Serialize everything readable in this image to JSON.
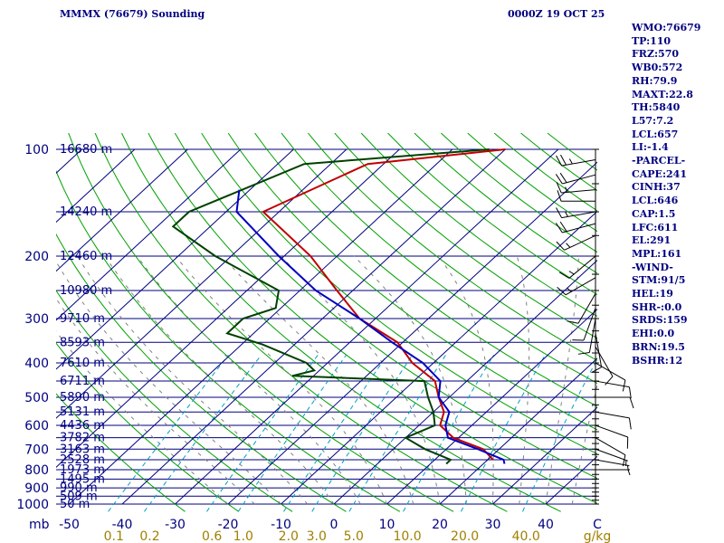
{
  "header": {
    "left": "MMMX (76679) Sounding",
    "right": "0000Z 19 OCT 25"
  },
  "stats": [
    "WMO:76679",
    "TP:110",
    "FRZ:570",
    "WB0:572",
    "RH:79.9",
    "MAXT:22.8",
    "TH:5840",
    "L57:7.2",
    "LCL:657",
    "LI:-1.4",
    "-PARCEL-",
    "CAPE:241",
    "CINH:37",
    "LCL:646",
    "CAP:1.5",
    "LFC:611",
    "EL:291",
    "MPL:161",
    "-WIND-",
    "STM:91/5",
    "HEL:19",
    "SHR-:0.0",
    "SRDS:159",
    "EHI:0.0",
    "BRN:19.5",
    "BSHR:12"
  ],
  "colors": {
    "isobar": "#000080",
    "isotherm": "#000080",
    "dry_adiabat": "#00a000",
    "moist_adiabat": "#808080",
    "mixing_ratio": "#00a0c0",
    "temperature": "#c00000",
    "dewpoint": "#004000",
    "parcel": "#0000c0",
    "text": "#000080",
    "mixing_label": "#a08000"
  },
  "chart_data": {
    "type": "line",
    "title": "MMMX (76679) Sounding",
    "subtitle": "0000Z 19 OCT 25",
    "xlabel": "C",
    "ylabel": "mb",
    "xlim": [
      -50,
      50
    ],
    "ylim": [
      1000,
      100
    ],
    "pressure_labels": [
      "100",
      "200",
      "300",
      "400",
      "500",
      "600",
      "700",
      "800",
      "900",
      "1000"
    ],
    "temperature_ticks": [
      "-50",
      "-40",
      "-30",
      "-20",
      "-10",
      "0",
      "10",
      "20",
      "30",
      "40"
    ],
    "mixing_ratio_labels": [
      "0.1",
      "0.2",
      "0.6",
      "1.0",
      "2.0",
      "3.0",
      "5.0",
      "10.0",
      "20.0",
      "40.0"
    ],
    "mixing_ratio_unit": "g/kg",
    "height_labels": [
      {
        "p": 100,
        "label": "16680 m"
      },
      {
        "p": 150,
        "label": "14240 m"
      },
      {
        "p": 200,
        "label": "12460 m"
      },
      {
        "p": 250,
        "label": "10980 m"
      },
      {
        "p": 300,
        "label": "9710 m"
      },
      {
        "p": 350,
        "label": "8593 m"
      },
      {
        "p": 400,
        "label": "7610 m"
      },
      {
        "p": 450,
        "label": "6711 m"
      },
      {
        "p": 500,
        "label": "5890 m"
      },
      {
        "p": 550,
        "label": "5131 m"
      },
      {
        "p": 600,
        "label": "4436 m"
      },
      {
        "p": 650,
        "label": "3782 m"
      },
      {
        "p": 700,
        "label": "3163 m"
      },
      {
        "p": 750,
        "label": "2528 m"
      },
      {
        "p": 800,
        "label": "1973 m"
      },
      {
        "p": 850,
        "label": "1495 m"
      },
      {
        "p": 900,
        "label": "990 m"
      },
      {
        "p": 950,
        "label": "509 m"
      },
      {
        "p": 1000,
        "label": "50 m"
      }
    ],
    "series": [
      {
        "name": "Temperature",
        "points": [
          [
            100,
            -40
          ],
          [
            110,
            -63
          ],
          [
            150,
            -73
          ],
          [
            200,
            -55
          ],
          [
            250,
            -43
          ],
          [
            300,
            -33
          ],
          [
            350,
            -21
          ],
          [
            400,
            -14
          ],
          [
            450,
            -6
          ],
          [
            500,
            -2
          ],
          [
            550,
            2
          ],
          [
            600,
            4
          ],
          [
            650,
            9
          ],
          [
            700,
            17
          ],
          [
            750,
            21
          ]
        ]
      },
      {
        "name": "Dewpoint",
        "points": [
          [
            100,
            -43
          ],
          [
            110,
            -75
          ],
          [
            150,
            -87
          ],
          [
            165,
            -87
          ],
          [
            200,
            -73
          ],
          [
            250,
            -54
          ],
          [
            280,
            -51
          ],
          [
            300,
            -55
          ],
          [
            330,
            -55
          ],
          [
            355,
            -46
          ],
          [
            400,
            -34
          ],
          [
            420,
            -31
          ],
          [
            435,
            -34
          ],
          [
            450,
            -8
          ],
          [
            500,
            -4
          ],
          [
            550,
            0
          ],
          [
            600,
            3
          ],
          [
            650,
            0
          ],
          [
            700,
            6
          ],
          [
            750,
            13
          ],
          [
            770,
            13
          ]
        ]
      },
      {
        "name": "Parcel",
        "points": [
          [
            130,
            -82
          ],
          [
            150,
            -78
          ],
          [
            200,
            -61
          ],
          [
            250,
            -47
          ],
          [
            300,
            -33
          ],
          [
            350,
            -22
          ],
          [
            400,
            -12
          ],
          [
            450,
            -5
          ],
          [
            500,
            -2
          ],
          [
            550,
            3
          ],
          [
            600,
            5
          ],
          [
            650,
            8
          ],
          [
            700,
            16
          ],
          [
            750,
            23
          ],
          [
            770,
            24
          ]
        ]
      }
    ],
    "wind_barbs": [
      {
        "p": 107,
        "dir": 260,
        "kt": 25
      },
      {
        "p": 118,
        "dir": 255,
        "kt": 20
      },
      {
        "p": 130,
        "dir": 265,
        "kt": 15
      },
      {
        "p": 140,
        "dir": 270,
        "kt": 10
      },
      {
        "p": 150,
        "dir": 260,
        "kt": 15
      },
      {
        "p": 162,
        "dir": 255,
        "kt": 20
      },
      {
        "p": 175,
        "dir": 245,
        "kt": 15
      },
      {
        "p": 200,
        "dir": 230,
        "kt": 15
      },
      {
        "p": 230,
        "dir": 240,
        "kt": 15
      },
      {
        "p": 255,
        "dir": 210,
        "kt": 10
      },
      {
        "p": 280,
        "dir": 200,
        "kt": 10
      },
      {
        "p": 300,
        "dir": 190,
        "kt": 10
      },
      {
        "p": 330,
        "dir": 170,
        "kt": 10
      },
      {
        "p": 360,
        "dir": 150,
        "kt": 10
      },
      {
        "p": 400,
        "dir": 120,
        "kt": 10
      },
      {
        "p": 450,
        "dir": 100,
        "kt": 10
      },
      {
        "p": 500,
        "dir": 90,
        "kt": 10
      },
      {
        "p": 550,
        "dir": 100,
        "kt": 10
      },
      {
        "p": 600,
        "dir": 110,
        "kt": 10
      },
      {
        "p": 650,
        "dir": 120,
        "kt": 10
      },
      {
        "p": 700,
        "dir": 110,
        "kt": 5
      },
      {
        "p": 750,
        "dir": 100,
        "kt": 5
      },
      {
        "p": 800,
        "dir": 90,
        "kt": 5
      }
    ]
  }
}
